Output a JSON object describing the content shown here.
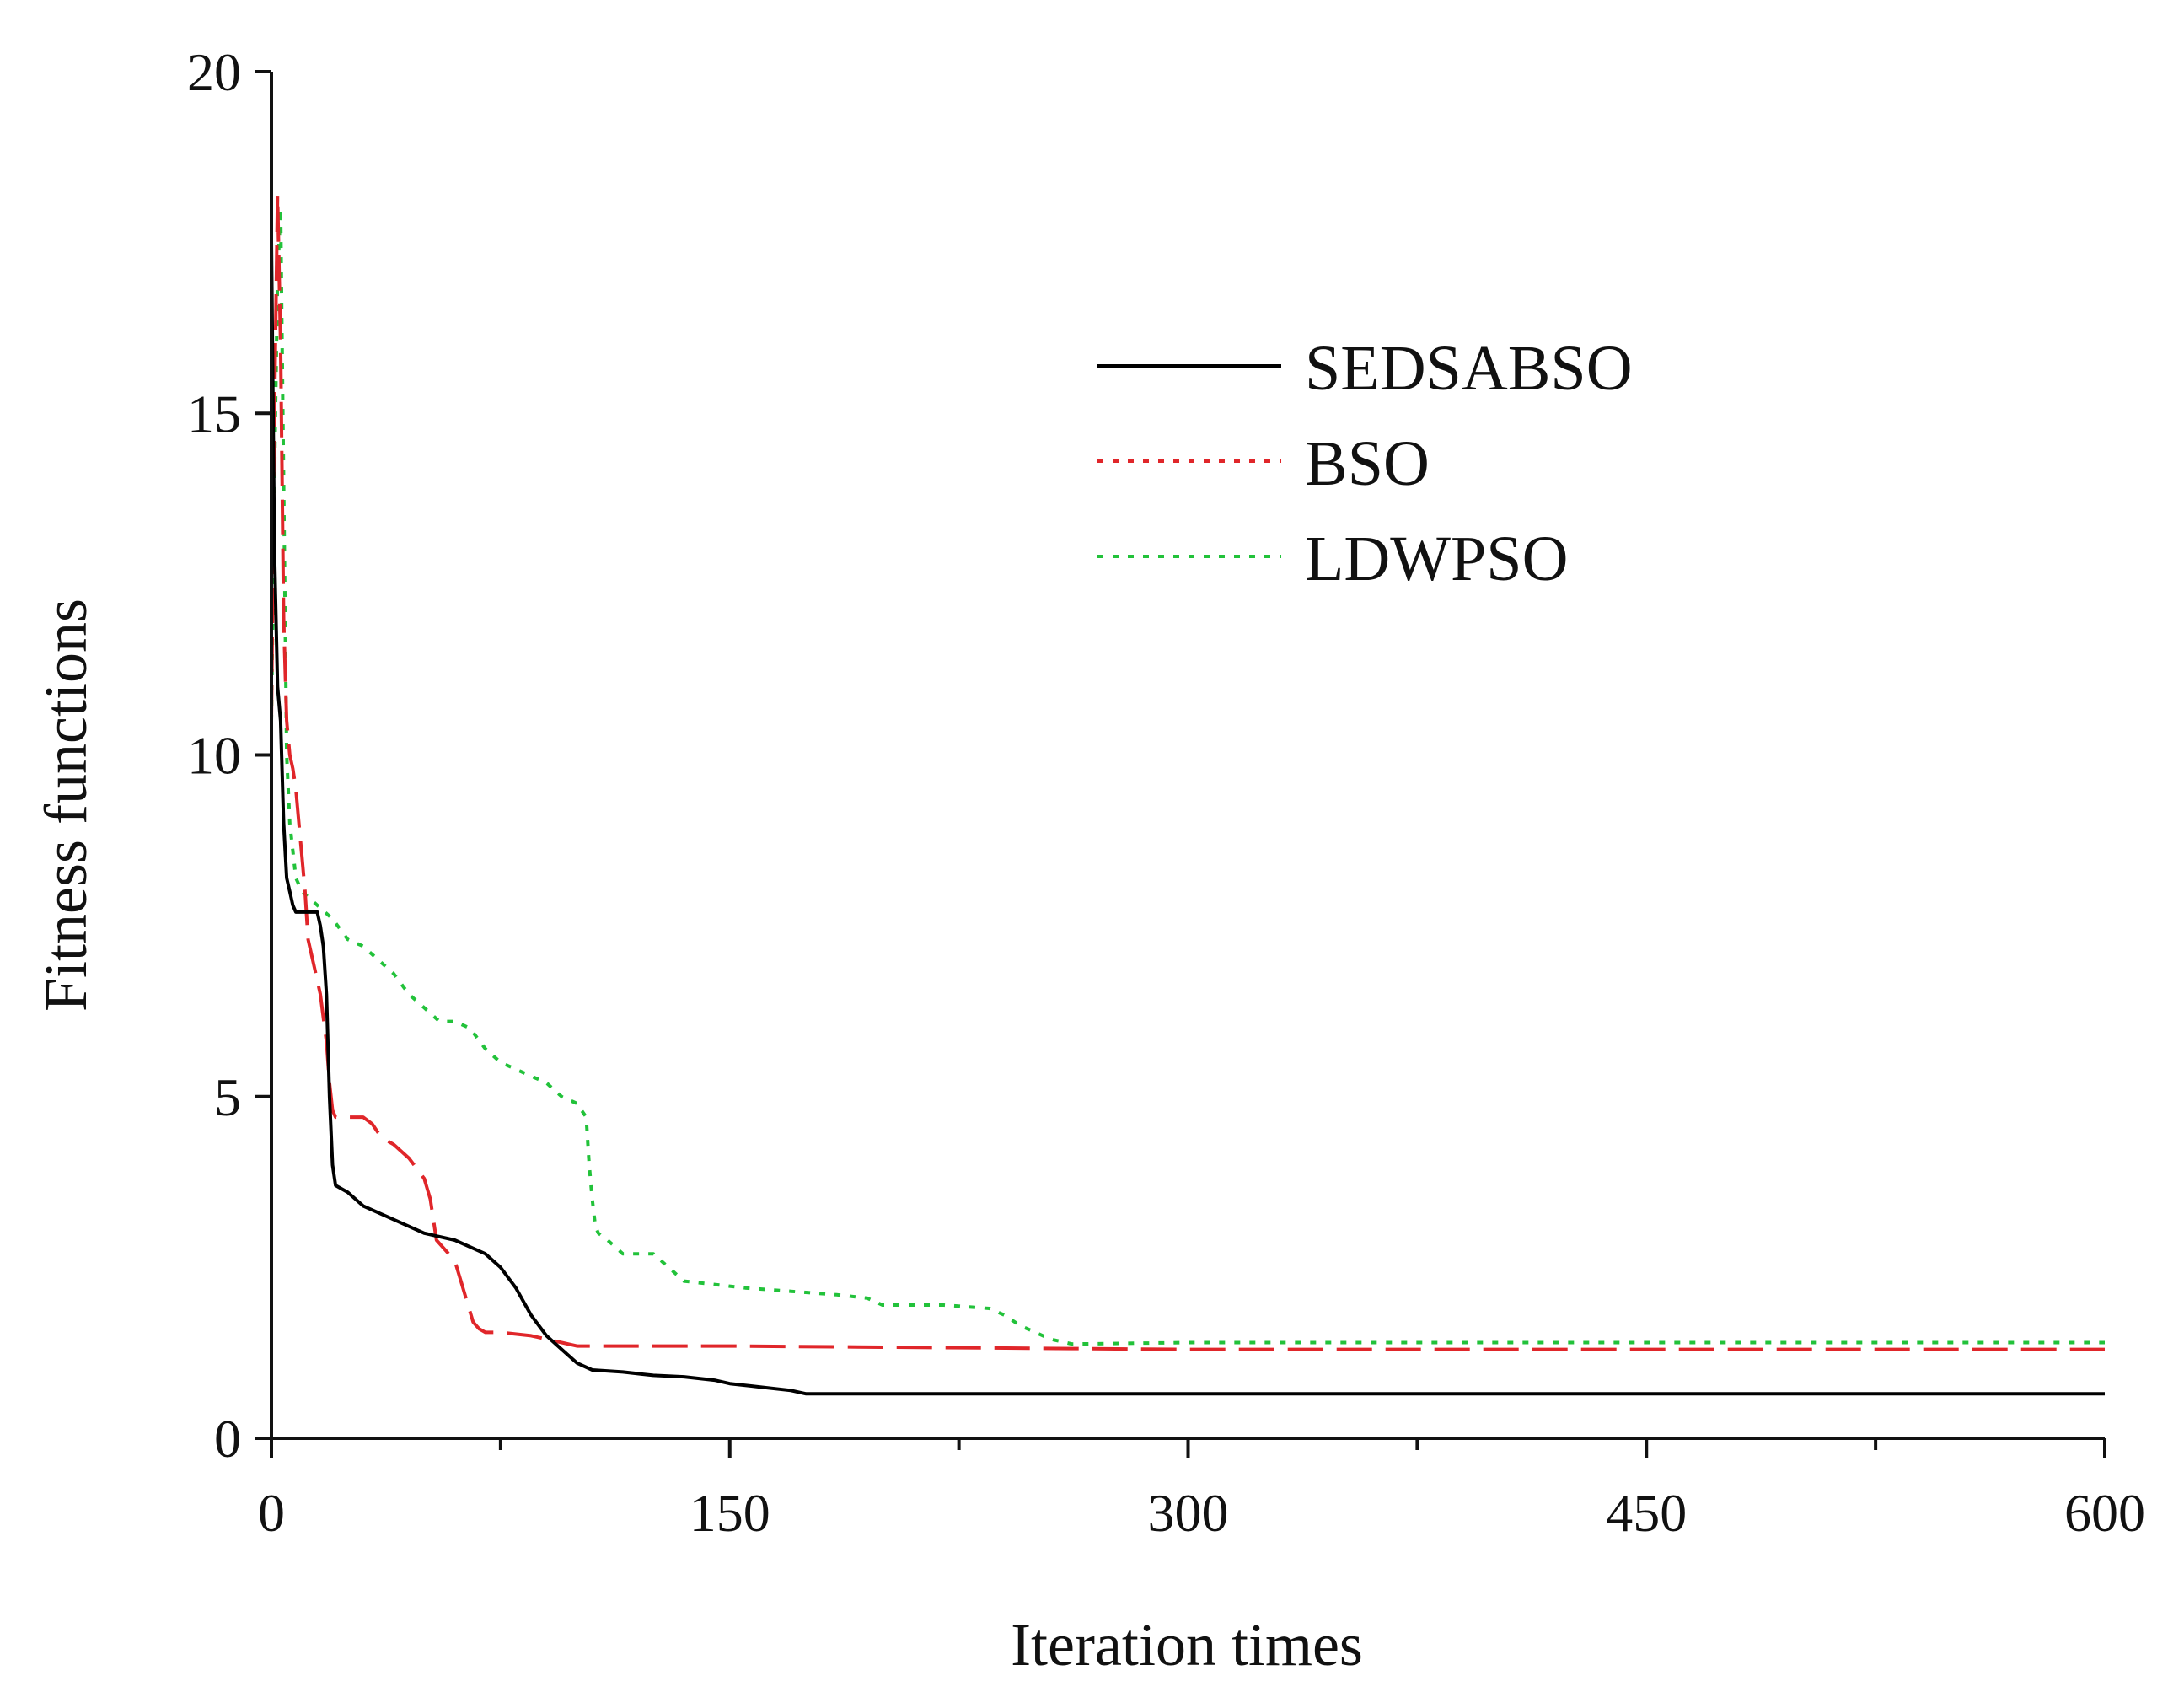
{
  "chart_data": {
    "type": "line",
    "title": "",
    "xlabel": "Iteration times",
    "ylabel": "Fitness functions",
    "xlim": [
      0,
      600
    ],
    "ylim": [
      0,
      20
    ],
    "xticks": [
      0,
      150,
      300,
      450,
      600
    ],
    "yticks": [
      0,
      5,
      10,
      15,
      20
    ],
    "x_minor_ticks": [
      75,
      225,
      375,
      525
    ],
    "grid": false,
    "legend_position": "top-right",
    "series": [
      {
        "name": "SEDSABSO",
        "color": "#000000",
        "dash": "solid",
        "points": [
          [
            0,
            17.5
          ],
          [
            1,
            13
          ],
          [
            2,
            11
          ],
          [
            3,
            10.5
          ],
          [
            4,
            9
          ],
          [
            5,
            8.2
          ],
          [
            6,
            8.0
          ],
          [
            7,
            7.8
          ],
          [
            8,
            7.7
          ],
          [
            15,
            7.7
          ],
          [
            16,
            7.5
          ],
          [
            17,
            7.2
          ],
          [
            18,
            6.5
          ],
          [
            19,
            5.0
          ],
          [
            20,
            4.0
          ],
          [
            21,
            3.7
          ],
          [
            25,
            3.6
          ],
          [
            30,
            3.4
          ],
          [
            40,
            3.2
          ],
          [
            50,
            3.0
          ],
          [
            60,
            2.9
          ],
          [
            65,
            2.8
          ],
          [
            70,
            2.7
          ],
          [
            75,
            2.5
          ],
          [
            80,
            2.2
          ],
          [
            85,
            1.8
          ],
          [
            90,
            1.5
          ],
          [
            95,
            1.3
          ],
          [
            100,
            1.1
          ],
          [
            105,
            1.0
          ],
          [
            115,
            0.97
          ],
          [
            125,
            0.92
          ],
          [
            135,
            0.9
          ],
          [
            145,
            0.85
          ],
          [
            150,
            0.8
          ],
          [
            160,
            0.75
          ],
          [
            170,
            0.7
          ],
          [
            175,
            0.65
          ],
          [
            200,
            0.65
          ],
          [
            300,
            0.65
          ],
          [
            450,
            0.65
          ],
          [
            600,
            0.65
          ]
        ]
      },
      {
        "name": "BSO",
        "color": "#e0262a",
        "dash": "dashed",
        "points": [
          [
            0,
            10.5
          ],
          [
            1,
            15
          ],
          [
            2,
            18.2
          ],
          [
            3,
            16
          ],
          [
            4,
            12
          ],
          [
            5,
            10.5
          ],
          [
            6,
            10
          ],
          [
            7,
            9.8
          ],
          [
            8,
            9.5
          ],
          [
            9,
            9
          ],
          [
            10,
            8.5
          ],
          [
            11,
            8
          ],
          [
            12,
            7.3
          ],
          [
            14,
            6.9
          ],
          [
            16,
            6.5
          ],
          [
            18,
            5.8
          ],
          [
            19,
            5.2
          ],
          [
            20,
            4.8
          ],
          [
            21,
            4.7
          ],
          [
            30,
            4.7
          ],
          [
            33,
            4.6
          ],
          [
            36,
            4.4
          ],
          [
            40,
            4.3
          ],
          [
            45,
            4.1
          ],
          [
            50,
            3.8
          ],
          [
            52,
            3.5
          ],
          [
            53,
            3.2
          ],
          [
            54,
            2.9
          ],
          [
            56,
            2.8
          ],
          [
            60,
            2.6
          ],
          [
            62,
            2.3
          ],
          [
            64,
            2.0
          ],
          [
            66,
            1.7
          ],
          [
            68,
            1.6
          ],
          [
            70,
            1.55
          ],
          [
            75,
            1.55
          ],
          [
            85,
            1.5
          ],
          [
            95,
            1.4
          ],
          [
            100,
            1.35
          ],
          [
            150,
            1.35
          ],
          [
            300,
            1.3
          ],
          [
            450,
            1.3
          ],
          [
            600,
            1.3
          ]
        ]
      },
      {
        "name": "LDWPSO",
        "color": "#22c23a",
        "dash": "dotted",
        "points": [
          [
            0,
            10.5
          ],
          [
            1,
            14
          ],
          [
            2,
            17
          ],
          [
            3,
            18.0
          ],
          [
            4,
            14
          ],
          [
            5,
            10
          ],
          [
            6,
            9
          ],
          [
            8,
            8.2
          ],
          [
            10,
            8.0
          ],
          [
            15,
            7.8
          ],
          [
            20,
            7.6
          ],
          [
            25,
            7.3
          ],
          [
            30,
            7.2
          ],
          [
            35,
            7.0
          ],
          [
            40,
            6.8
          ],
          [
            45,
            6.5
          ],
          [
            50,
            6.3
          ],
          [
            55,
            6.1
          ],
          [
            60,
            6.1
          ],
          [
            65,
            6.0
          ],
          [
            70,
            5.7
          ],
          [
            75,
            5.5
          ],
          [
            80,
            5.4
          ],
          [
            85,
            5.3
          ],
          [
            90,
            5.2
          ],
          [
            95,
            5.0
          ],
          [
            100,
            4.9
          ],
          [
            103,
            4.7
          ],
          [
            104,
            4.0
          ],
          [
            105,
            3.5
          ],
          [
            106,
            3.1
          ],
          [
            107,
            3.0
          ],
          [
            110,
            2.9
          ],
          [
            115,
            2.7
          ],
          [
            125,
            2.7
          ],
          [
            130,
            2.5
          ],
          [
            135,
            2.3
          ],
          [
            145,
            2.25
          ],
          [
            155,
            2.2
          ],
          [
            170,
            2.15
          ],
          [
            185,
            2.1
          ],
          [
            195,
            2.05
          ],
          [
            200,
            1.95
          ],
          [
            220,
            1.95
          ],
          [
            235,
            1.9
          ],
          [
            240,
            1.8
          ],
          [
            245,
            1.65
          ],
          [
            250,
            1.55
          ],
          [
            255,
            1.45
          ],
          [
            262,
            1.38
          ],
          [
            300,
            1.4
          ],
          [
            450,
            1.4
          ],
          [
            600,
            1.4
          ]
        ]
      }
    ]
  }
}
